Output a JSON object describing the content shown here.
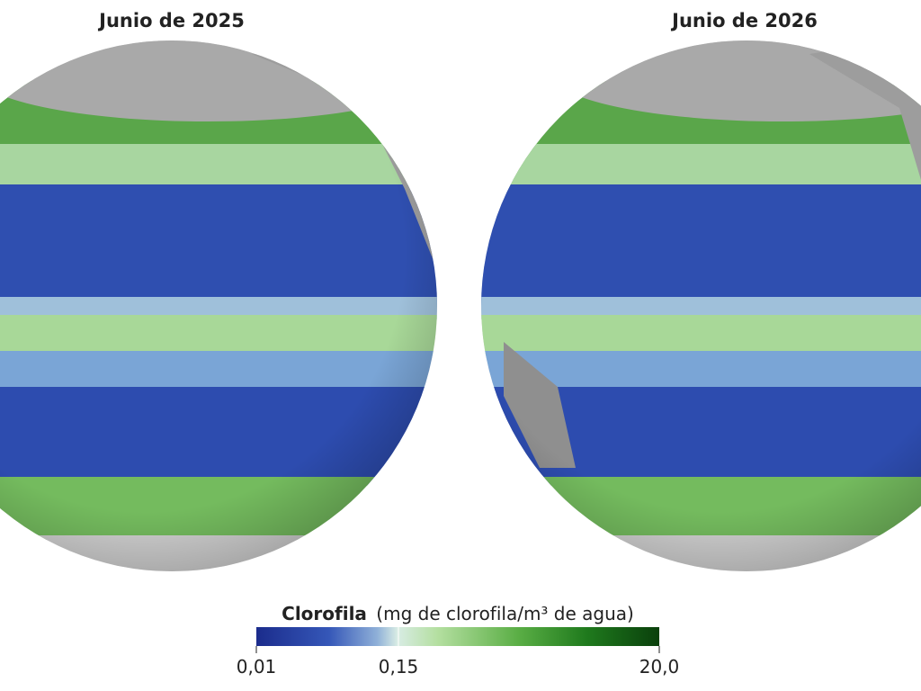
{
  "panels": [
    {
      "title": "Junio de 2025"
    },
    {
      "title": "Junio de 2026"
    }
  ],
  "legend": {
    "title": "Clorofila",
    "units": "(mg de clorofila/m³ de agua)",
    "ticks": [
      "0,01",
      "0,15",
      "20,0"
    ]
  }
}
